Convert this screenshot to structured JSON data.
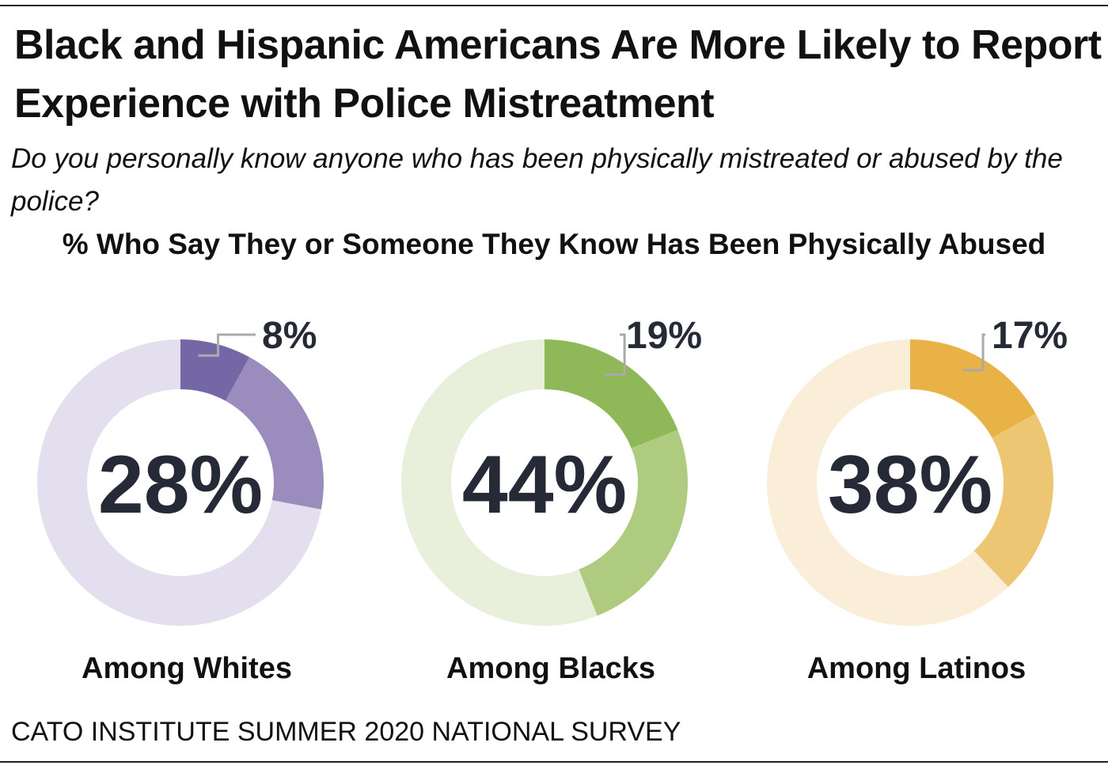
{
  "title": "Black and Hispanic Americans Are More Likely to Report Experience with Police Mistreatment",
  "subtitle": "Do you personally know anyone who has been physically mistreated or abused by the police?",
  "source": "CATO INSTITUTE SUMMER 2020 NATIONAL SURVEY",
  "chart_data": {
    "type": "pie",
    "title": "% Who Say They or Someone They Know Has Been Physically Abused",
    "donuts": [
      {
        "label": "Among Whites",
        "total": 28,
        "highlight": 8,
        "total_label": "28%",
        "highlight_label": "8%",
        "colors": {
          "highlight": "#7567a6",
          "rest_of_total": "#9a8cbd",
          "remainder": "#e3dfef"
        }
      },
      {
        "label": "Among Blacks",
        "total": 44,
        "highlight": 19,
        "total_label": "44%",
        "highlight_label": "19%",
        "colors": {
          "highlight": "#8fb858",
          "rest_of_total": "#aecb80",
          "remainder": "#e8f0dc"
        }
      },
      {
        "label": "Among Latinos",
        "total": 38,
        "highlight": 17,
        "total_label": "38%",
        "highlight_label": "17%",
        "colors": {
          "highlight": "#e8b247",
          "rest_of_total": "#ecc673",
          "remainder": "#faeed8"
        }
      }
    ]
  }
}
